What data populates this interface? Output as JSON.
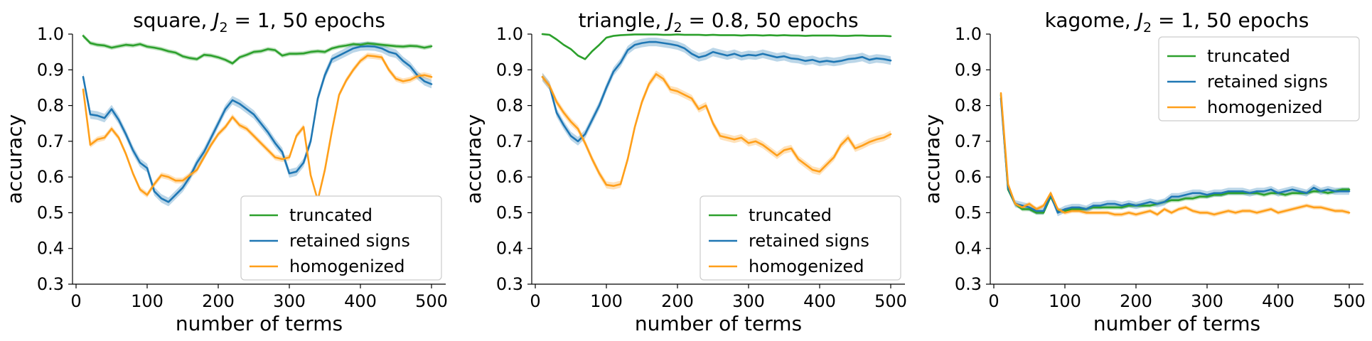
{
  "chart_data": [
    {
      "type": "line",
      "title_prefix": "square, ",
      "title_math": "J",
      "title_sub": "2",
      "title_suffix": " = 1, 50 epochs",
      "xlabel": "number of terms",
      "ylabel": "accuracy",
      "xlim": [
        -5,
        520
      ],
      "ylim": [
        0.3,
        1.0
      ],
      "xticks": [
        0,
        100,
        200,
        300,
        400,
        500
      ],
      "yticks": [
        0.3,
        0.4,
        0.5,
        0.6,
        0.7,
        0.8,
        0.9,
        1.0
      ],
      "xtick_labels": [
        "0",
        "100",
        "200",
        "300",
        "400",
        "500"
      ],
      "ytick_labels": [
        "0.3",
        "0.4",
        "0.5",
        "0.6",
        "0.7",
        "0.8",
        "0.9",
        "1.0"
      ],
      "legend_position": "lower-right",
      "x": [
        10,
        20,
        30,
        40,
        50,
        60,
        70,
        80,
        90,
        100,
        110,
        120,
        130,
        140,
        150,
        160,
        170,
        180,
        190,
        200,
        210,
        220,
        230,
        240,
        250,
        260,
        270,
        280,
        290,
        300,
        310,
        320,
        330,
        340,
        350,
        360,
        370,
        380,
        390,
        400,
        410,
        420,
        430,
        440,
        450,
        460,
        470,
        480,
        490,
        500
      ],
      "series": [
        {
          "name": "truncated",
          "color": "#2ca02c",
          "values": [
            0.995,
            0.975,
            0.97,
            0.968,
            0.962,
            0.966,
            0.97,
            0.968,
            0.972,
            0.965,
            0.962,
            0.958,
            0.952,
            0.948,
            0.938,
            0.933,
            0.93,
            0.942,
            0.94,
            0.935,
            0.928,
            0.918,
            0.935,
            0.942,
            0.95,
            0.952,
            0.958,
            0.955,
            0.94,
            0.945,
            0.945,
            0.946,
            0.95,
            0.952,
            0.95,
            0.96,
            0.965,
            0.968,
            0.972,
            0.97,
            0.974,
            0.972,
            0.97,
            0.968,
            0.966,
            0.965,
            0.967,
            0.966,
            0.962,
            0.966
          ],
          "band": 0.006
        },
        {
          "name": "retained signs",
          "color": "#1f77b4",
          "values": [
            0.88,
            0.775,
            0.772,
            0.765,
            0.79,
            0.76,
            0.72,
            0.675,
            0.64,
            0.625,
            0.56,
            0.54,
            0.53,
            0.55,
            0.57,
            0.6,
            0.64,
            0.67,
            0.71,
            0.75,
            0.79,
            0.815,
            0.805,
            0.79,
            0.775,
            0.75,
            0.725,
            0.695,
            0.67,
            0.61,
            0.615,
            0.64,
            0.7,
            0.82,
            0.885,
            0.93,
            0.94,
            0.95,
            0.96,
            0.965,
            0.966,
            0.965,
            0.96,
            0.95,
            0.945,
            0.925,
            0.91,
            0.885,
            0.868,
            0.86
          ],
          "band": 0.012
        },
        {
          "name": "homogenized",
          "color": "#ff9f1a",
          "values": [
            0.845,
            0.69,
            0.705,
            0.71,
            0.735,
            0.71,
            0.665,
            0.61,
            0.565,
            0.55,
            0.58,
            0.605,
            0.6,
            0.59,
            0.59,
            0.605,
            0.62,
            0.655,
            0.69,
            0.72,
            0.74,
            0.768,
            0.745,
            0.735,
            0.715,
            0.695,
            0.675,
            0.655,
            0.65,
            0.655,
            0.715,
            0.74,
            0.605,
            0.535,
            0.62,
            0.73,
            0.83,
            0.87,
            0.9,
            0.925,
            0.94,
            0.938,
            0.935,
            0.9,
            0.875,
            0.868,
            0.872,
            0.882,
            0.885,
            0.88
          ],
          "band": 0.008
        }
      ]
    },
    {
      "type": "line",
      "title_prefix": "triangle, ",
      "title_math": "J",
      "title_sub": "2",
      "title_suffix": " = 0.8, 50 epochs",
      "xlabel": "number of terms",
      "ylabel": "accuracy",
      "xlim": [
        -5,
        520
      ],
      "ylim": [
        0.3,
        1.0
      ],
      "xticks": [
        0,
        100,
        200,
        300,
        400,
        500
      ],
      "yticks": [
        0.3,
        0.4,
        0.5,
        0.6,
        0.7,
        0.8,
        0.9,
        1.0
      ],
      "xtick_labels": [
        "0",
        "100",
        "200",
        "300",
        "400",
        "500"
      ],
      "ytick_labels": [
        "0.3",
        "0.4",
        "0.5",
        "0.6",
        "0.7",
        "0.8",
        "0.9",
        "1.0"
      ],
      "legend_position": "lower-right",
      "x": [
        10,
        20,
        30,
        40,
        50,
        60,
        70,
        80,
        90,
        100,
        110,
        120,
        130,
        140,
        150,
        160,
        170,
        180,
        190,
        200,
        210,
        220,
        230,
        240,
        250,
        260,
        270,
        280,
        290,
        300,
        310,
        320,
        330,
        340,
        350,
        360,
        370,
        380,
        390,
        400,
        410,
        420,
        430,
        440,
        450,
        460,
        470,
        480,
        490,
        500
      ],
      "series": [
        {
          "name": "truncated",
          "color": "#2ca02c",
          "values": [
            1.0,
            0.998,
            0.985,
            0.97,
            0.958,
            0.94,
            0.93,
            0.952,
            0.97,
            0.99,
            0.995,
            0.997,
            0.998,
            0.999,
            0.999,
            0.999,
            0.999,
            0.998,
            0.998,
            0.999,
            0.998,
            0.998,
            0.998,
            0.997,
            0.998,
            0.997,
            0.997,
            0.997,
            0.996,
            0.997,
            0.997,
            0.996,
            0.997,
            0.996,
            0.997,
            0.996,
            0.996,
            0.995,
            0.996,
            0.996,
            0.996,
            0.996,
            0.995,
            0.995,
            0.996,
            0.996,
            0.995,
            0.995,
            0.995,
            0.994
          ],
          "band": 0.003
        },
        {
          "name": "retained signs",
          "color": "#1f77b4",
          "values": [
            0.88,
            0.855,
            0.78,
            0.745,
            0.715,
            0.7,
            0.72,
            0.76,
            0.8,
            0.85,
            0.895,
            0.92,
            0.955,
            0.97,
            0.975,
            0.978,
            0.978,
            0.975,
            0.972,
            0.968,
            0.96,
            0.945,
            0.935,
            0.94,
            0.95,
            0.945,
            0.94,
            0.945,
            0.938,
            0.942,
            0.94,
            0.945,
            0.94,
            0.935,
            0.938,
            0.932,
            0.93,
            0.925,
            0.928,
            0.922,
            0.925,
            0.922,
            0.925,
            0.93,
            0.932,
            0.936,
            0.928,
            0.932,
            0.93,
            0.926
          ],
          "band": 0.012
        },
        {
          "name": "homogenized",
          "color": "#ff9f1a",
          "values": [
            0.88,
            0.855,
            0.81,
            0.78,
            0.755,
            0.735,
            0.695,
            0.65,
            0.61,
            0.578,
            0.575,
            0.58,
            0.65,
            0.74,
            0.81,
            0.86,
            0.888,
            0.875,
            0.845,
            0.84,
            0.83,
            0.82,
            0.79,
            0.8,
            0.75,
            0.715,
            0.71,
            0.705,
            0.71,
            0.695,
            0.7,
            0.69,
            0.675,
            0.66,
            0.675,
            0.68,
            0.65,
            0.635,
            0.62,
            0.615,
            0.635,
            0.655,
            0.69,
            0.71,
            0.68,
            0.688,
            0.698,
            0.705,
            0.71,
            0.72
          ],
          "band": 0.01
        }
      ]
    },
    {
      "type": "line",
      "title_prefix": "kagome, ",
      "title_math": "J",
      "title_sub": "2",
      "title_suffix": " = 1, 50 epochs",
      "xlabel": "number of terms",
      "ylabel": "accuracy",
      "xlim": [
        -5,
        520
      ],
      "ylim": [
        0.3,
        1.0
      ],
      "xticks": [
        0,
        100,
        200,
        300,
        400,
        500
      ],
      "yticks": [
        0.3,
        0.4,
        0.5,
        0.6,
        0.7,
        0.8,
        0.9,
        1.0
      ],
      "xtick_labels": [
        "0",
        "100",
        "200",
        "300",
        "400",
        "500"
      ],
      "ytick_labels": [
        "0.3",
        "0.4",
        "0.5",
        "0.6",
        "0.7",
        "0.8",
        "0.9",
        "1.0"
      ],
      "legend_position": "upper-right",
      "x": [
        10,
        20,
        30,
        40,
        50,
        60,
        70,
        80,
        90,
        100,
        110,
        120,
        130,
        140,
        150,
        160,
        170,
        180,
        190,
        200,
        210,
        220,
        230,
        240,
        250,
        260,
        270,
        280,
        290,
        300,
        310,
        320,
        330,
        340,
        350,
        360,
        370,
        380,
        390,
        400,
        410,
        420,
        430,
        440,
        450,
        460,
        470,
        480,
        490,
        500
      ],
      "series": [
        {
          "name": "truncated",
          "color": "#2ca02c",
          "values": [
            0.83,
            0.565,
            0.525,
            0.51,
            0.51,
            0.5,
            0.5,
            0.545,
            0.505,
            0.505,
            0.51,
            0.51,
            0.51,
            0.515,
            0.515,
            0.515,
            0.515,
            0.515,
            0.52,
            0.52,
            0.52,
            0.52,
            0.525,
            0.53,
            0.535,
            0.535,
            0.54,
            0.54,
            0.545,
            0.545,
            0.55,
            0.55,
            0.555,
            0.555,
            0.555,
            0.555,
            0.555,
            0.55,
            0.555,
            0.555,
            0.55,
            0.555,
            0.555,
            0.555,
            0.56,
            0.56,
            0.555,
            0.56,
            0.565,
            0.565
          ],
          "band": 0.006
        },
        {
          "name": "retained signs",
          "color": "#1f77b4",
          "values": [
            0.82,
            0.57,
            0.525,
            0.52,
            0.515,
            0.505,
            0.505,
            0.55,
            0.5,
            0.51,
            0.515,
            0.515,
            0.51,
            0.52,
            0.52,
            0.525,
            0.525,
            0.52,
            0.525,
            0.52,
            0.525,
            0.53,
            0.525,
            0.53,
            0.545,
            0.545,
            0.55,
            0.555,
            0.555,
            0.55,
            0.555,
            0.555,
            0.56,
            0.56,
            0.56,
            0.555,
            0.56,
            0.56,
            0.565,
            0.555,
            0.56,
            0.565,
            0.56,
            0.555,
            0.57,
            0.56,
            0.565,
            0.56,
            0.56,
            0.56
          ],
          "band": 0.01
        },
        {
          "name": "homogenized",
          "color": "#ff9f1a",
          "values": [
            0.835,
            0.58,
            0.525,
            0.515,
            0.525,
            0.51,
            0.52,
            0.555,
            0.51,
            0.5,
            0.505,
            0.505,
            0.5,
            0.5,
            0.5,
            0.5,
            0.495,
            0.495,
            0.5,
            0.495,
            0.5,
            0.505,
            0.495,
            0.51,
            0.5,
            0.51,
            0.515,
            0.505,
            0.5,
            0.5,
            0.495,
            0.5,
            0.505,
            0.5,
            0.505,
            0.505,
            0.5,
            0.505,
            0.51,
            0.5,
            0.505,
            0.51,
            0.515,
            0.52,
            0.515,
            0.515,
            0.51,
            0.505,
            0.505,
            0.5
          ],
          "band": 0.006
        }
      ]
    }
  ]
}
